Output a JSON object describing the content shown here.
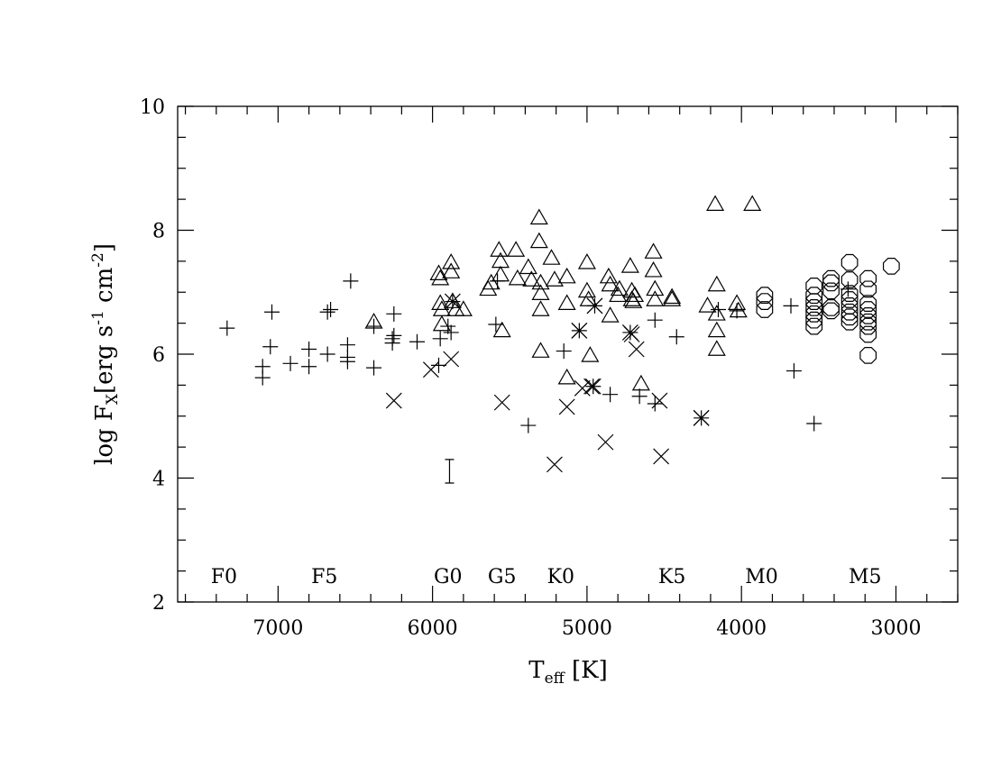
{
  "chart_data": {
    "type": "scatter",
    "title": "",
    "xlabel": {
      "main": "T",
      "sub": "eff",
      "unit": "[K]"
    },
    "ylabel": {
      "main": "log F",
      "sub": "X",
      "rest": "[erg s",
      "sup1": "-1",
      "mid": " cm",
      "sup2": "-2",
      "close": "]"
    },
    "xlim": [
      7650,
      2600
    ],
    "ylim": [
      2,
      10
    ],
    "x_reversed": true,
    "x_ticks": [
      7000,
      6000,
      5000,
      4000,
      3000
    ],
    "x_tick_labels": [
      "7000",
      "6000",
      "5000",
      "4000",
      "3000"
    ],
    "y_ticks": [
      2,
      4,
      6,
      8,
      10
    ],
    "y_tick_labels": [
      "2",
      "4",
      "6",
      "8",
      "10"
    ],
    "x_minor_step": 200,
    "y_minor_step": 0.5,
    "grid": false,
    "legend": "none",
    "spectral_types": [
      {
        "label": "F0",
        "x": 7350
      },
      {
        "label": "F5",
        "x": 6700
      },
      {
        "label": "G0",
        "x": 5900
      },
      {
        "label": "G5",
        "x": 5550
      },
      {
        "label": "K0",
        "x": 5170
      },
      {
        "label": "K5",
        "x": 4450
      },
      {
        "label": "M0",
        "x": 3870
      },
      {
        "label": "M5",
        "x": 3200
      }
    ],
    "series": [
      {
        "marker": "plus",
        "points": [
          [
            7330,
            6.42
          ],
          [
            7100,
            5.62
          ],
          [
            7100,
            5.8
          ],
          [
            7050,
            6.12
          ],
          [
            7040,
            6.68
          ],
          [
            6920,
            5.85
          ],
          [
            6800,
            5.8
          ],
          [
            6800,
            6.08
          ],
          [
            6680,
            6.0
          ],
          [
            6680,
            6.68
          ],
          [
            6660,
            6.72
          ],
          [
            6550,
            5.88
          ],
          [
            6550,
            5.95
          ],
          [
            6550,
            6.15
          ],
          [
            6530,
            7.18
          ],
          [
            6380,
            6.45
          ],
          [
            6380,
            5.78
          ],
          [
            6260,
            6.18
          ],
          [
            6260,
            6.25
          ],
          [
            6250,
            6.3
          ],
          [
            6250,
            6.65
          ],
          [
            6100,
            6.2
          ],
          [
            5960,
            5.82
          ],
          [
            5950,
            6.25
          ],
          [
            5900,
            6.45
          ],
          [
            5880,
            6.35
          ],
          [
            5590,
            6.48
          ],
          [
            5580,
            7.18
          ],
          [
            5380,
            4.85
          ],
          [
            5150,
            6.05
          ],
          [
            4850,
            5.35
          ],
          [
            4660,
            5.32
          ],
          [
            4560,
            5.2
          ],
          [
            4560,
            6.55
          ],
          [
            4420,
            6.28
          ],
          [
            4150,
            6.72
          ],
          [
            4030,
            6.7
          ],
          [
            3680,
            6.78
          ],
          [
            3660,
            5.73
          ],
          [
            3530,
            4.88
          ],
          [
            3310,
            7.05
          ]
        ]
      },
      {
        "marker": "triangle",
        "points": [
          [
            6380,
            6.52
          ],
          [
            5960,
            7.3
          ],
          [
            5950,
            7.22
          ],
          [
            5950,
            6.82
          ],
          [
            5940,
            6.72
          ],
          [
            5940,
            6.48
          ],
          [
            5880,
            7.48
          ],
          [
            5880,
            7.33
          ],
          [
            5870,
            6.85
          ],
          [
            5850,
            6.72
          ],
          [
            5800,
            6.72
          ],
          [
            5640,
            7.05
          ],
          [
            5620,
            7.15
          ],
          [
            5570,
            7.68
          ],
          [
            5560,
            7.5
          ],
          [
            5560,
            7.28
          ],
          [
            5550,
            6.38
          ],
          [
            5460,
            7.68
          ],
          [
            5450,
            7.22
          ],
          [
            5380,
            7.4
          ],
          [
            5360,
            7.2
          ],
          [
            5310,
            8.2
          ],
          [
            5310,
            7.82
          ],
          [
            5300,
            7.15
          ],
          [
            5300,
            6.98
          ],
          [
            5300,
            6.72
          ],
          [
            5300,
            6.05
          ],
          [
            5230,
            7.55
          ],
          [
            5210,
            7.2
          ],
          [
            5130,
            7.25
          ],
          [
            5130,
            6.82
          ],
          [
            5130,
            5.62
          ],
          [
            5000,
            7.48
          ],
          [
            5000,
            7.02
          ],
          [
            4990,
            6.88
          ],
          [
            4980,
            5.98
          ],
          [
            4860,
            7.25
          ],
          [
            4850,
            7.12
          ],
          [
            4850,
            6.62
          ],
          [
            4800,
            6.95
          ],
          [
            4790,
            7.05
          ],
          [
            4720,
            7.42
          ],
          [
            4710,
            7.02
          ],
          [
            4710,
            6.88
          ],
          [
            4700,
            6.85
          ],
          [
            4690,
            6.95
          ],
          [
            4650,
            5.52
          ],
          [
            4570,
            7.65
          ],
          [
            4570,
            7.35
          ],
          [
            4560,
            7.05
          ],
          [
            4560,
            6.88
          ],
          [
            4450,
            6.92
          ],
          [
            4450,
            6.88
          ],
          [
            4220,
            6.78
          ],
          [
            4170,
            8.42
          ],
          [
            4160,
            7.12
          ],
          [
            4160,
            6.65
          ],
          [
            4160,
            6.38
          ],
          [
            4160,
            6.08
          ],
          [
            4030,
            6.82
          ],
          [
            4020,
            6.7
          ],
          [
            3930,
            8.42
          ]
        ]
      },
      {
        "marker": "cross",
        "points": [
          [
            6250,
            5.25
          ],
          [
            6010,
            5.75
          ],
          [
            5880,
            5.92
          ],
          [
            5550,
            5.22
          ],
          [
            5210,
            4.22
          ],
          [
            5130,
            5.15
          ],
          [
            5050,
            6.38
          ],
          [
            5030,
            5.45
          ],
          [
            4970,
            5.48
          ],
          [
            4950,
            6.78
          ],
          [
            4880,
            4.58
          ],
          [
            4710,
            6.32
          ],
          [
            4680,
            6.08
          ],
          [
            4530,
            5.25
          ],
          [
            4520,
            4.35
          ],
          [
            4260,
            4.97
          ]
        ]
      },
      {
        "marker": "asterisk",
        "points": [
          [
            5050,
            6.38
          ],
          [
            4960,
            5.48
          ],
          [
            4950,
            6.78
          ],
          [
            4720,
            6.35
          ],
          [
            4260,
            4.97
          ],
          [
            5870,
            6.85
          ]
        ]
      },
      {
        "marker": "octagon",
        "points": [
          [
            3850,
            6.95
          ],
          [
            3850,
            6.85
          ],
          [
            3850,
            6.72
          ],
          [
            3530,
            7.1
          ],
          [
            3530,
            6.95
          ],
          [
            3530,
            6.85
          ],
          [
            3530,
            6.75
          ],
          [
            3530,
            6.65
          ],
          [
            3530,
            6.55
          ],
          [
            3530,
            6.45
          ],
          [
            3420,
            7.22
          ],
          [
            3420,
            7.15
          ],
          [
            3420,
            7.02
          ],
          [
            3420,
            6.75
          ],
          [
            3420,
            6.7
          ],
          [
            3300,
            7.48
          ],
          [
            3300,
            7.2
          ],
          [
            3300,
            6.98
          ],
          [
            3300,
            6.88
          ],
          [
            3300,
            6.78
          ],
          [
            3300,
            6.68
          ],
          [
            3300,
            6.6
          ],
          [
            3300,
            6.52
          ],
          [
            3180,
            7.22
          ],
          [
            3180,
            7.05
          ],
          [
            3180,
            6.82
          ],
          [
            3180,
            6.72
          ],
          [
            3180,
            6.62
          ],
          [
            3180,
            6.52
          ],
          [
            3180,
            6.45
          ],
          [
            3180,
            6.32
          ],
          [
            3180,
            5.98
          ],
          [
            3030,
            7.42
          ]
        ]
      }
    ],
    "error_bar": {
      "x": 5890,
      "y_low": 3.92,
      "y_high": 4.3
    }
  }
}
